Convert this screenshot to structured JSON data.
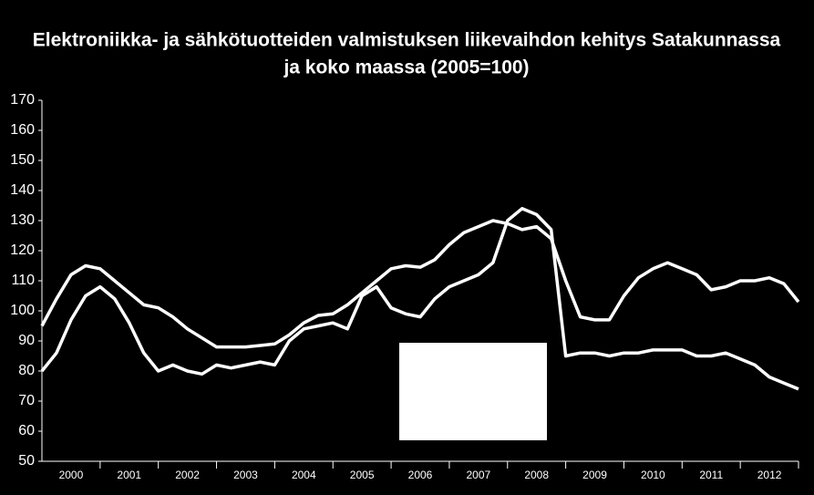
{
  "chart_data": {
    "type": "line",
    "title": [
      "Elektroniikka- ja sähkötuotteiden valmistuksen liikevaihdon kehitys Satakunnassa",
      "ja koko maassa (2005=100)"
    ],
    "x": [
      2000,
      2000.25,
      2000.5,
      2000.75,
      2001,
      2001.25,
      2001.5,
      2001.75,
      2002,
      2002.25,
      2002.5,
      2002.75,
      2003,
      2003.25,
      2003.5,
      2003.75,
      2004,
      2004.25,
      2004.5,
      2004.75,
      2005,
      2005.25,
      2005.5,
      2005.75,
      2006,
      2006.25,
      2006.5,
      2006.75,
      2007,
      2007.25,
      2007.5,
      2007.75,
      2008,
      2008.25,
      2008.5,
      2008.75,
      2009,
      2009.25,
      2009.5,
      2009.75,
      2010,
      2010.25,
      2010.5,
      2010.75,
      2011,
      2011.25,
      2011.5,
      2011.75,
      2012,
      2012.25,
      2012.5,
      2012.75,
      2013
    ],
    "xlim": [
      2000,
      2013
    ],
    "xticks": [
      {
        "value": 2000.5,
        "label": "2000"
      },
      {
        "value": 2001.5,
        "label": "2001"
      },
      {
        "value": 2002.5,
        "label": "2002"
      },
      {
        "value": 2003.5,
        "label": "2003"
      },
      {
        "value": 2004.5,
        "label": "2004"
      },
      {
        "value": 2005.5,
        "label": "2005"
      },
      {
        "value": 2006.5,
        "label": "2006"
      },
      {
        "value": 2007.5,
        "label": "2007"
      },
      {
        "value": 2008.5,
        "label": "2008"
      },
      {
        "value": 2009.5,
        "label": "2009"
      },
      {
        "value": 2010.5,
        "label": "2010"
      },
      {
        "value": 2011.5,
        "label": "2011"
      },
      {
        "value": 2012.5,
        "label": "2012"
      }
    ],
    "ylim": [
      50,
      170
    ],
    "yticks": [
      50,
      60,
      70,
      80,
      90,
      100,
      110,
      120,
      130,
      140,
      150,
      160,
      170
    ],
    "series": [
      {
        "color": "#ffffff",
        "values": [
          95,
          104,
          112,
          115,
          114,
          110,
          106,
          102,
          101,
          98,
          94,
          91,
          88,
          88,
          88,
          88.5,
          89,
          92,
          96,
          98.5,
          99,
          102,
          106,
          110,
          114,
          115,
          114.5,
          117,
          122,
          126,
          128,
          130,
          129,
          127,
          128,
          124,
          110,
          98,
          97,
          97,
          105,
          111,
          114,
          116,
          114,
          112,
          107,
          108,
          110,
          110,
          111,
          109,
          103
        ]
      },
      {
        "color": "#ffffff",
        "values": [
          80,
          86,
          97,
          105,
          108,
          104,
          96,
          86,
          80,
          82,
          80,
          79,
          82,
          81,
          82,
          83,
          82,
          90,
          94,
          95,
          96,
          94,
          105,
          108,
          101,
          99,
          98,
          104,
          108,
          110,
          112,
          116,
          130,
          134,
          132,
          127,
          85,
          86,
          86,
          85,
          86,
          86,
          87,
          87,
          87,
          85,
          85,
          86,
          84,
          82,
          78,
          76,
          74
        ]
      }
    ]
  }
}
